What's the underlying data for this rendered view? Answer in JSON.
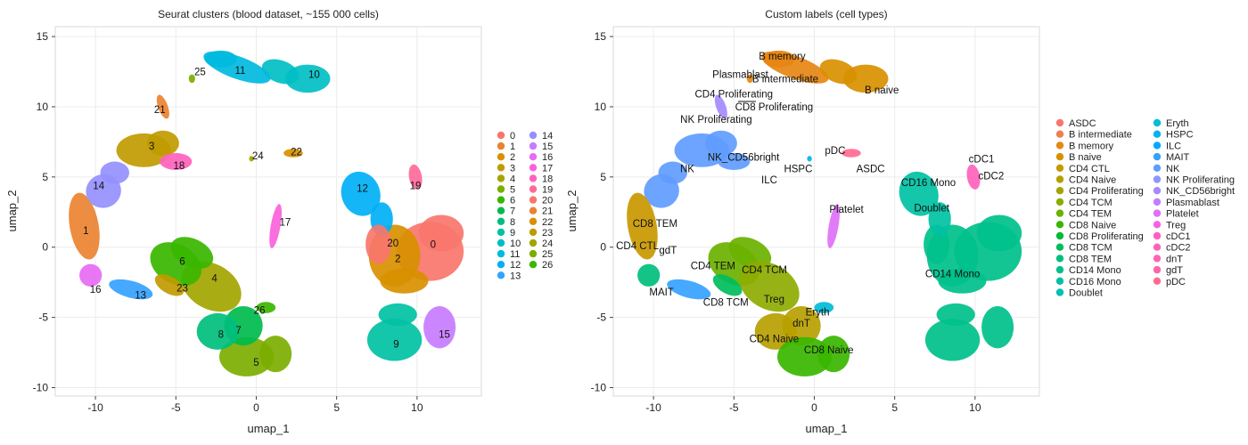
{
  "colors": {
    "ASDC": "#F8766D",
    "B intermediate": "#F27D52",
    "B memory": "#E68613",
    "B naive": "#D89000",
    "CD4 CTL": "#C99800",
    "CD4 Naive": "#B79F00",
    "CD4 Proliferating": "#A3A500",
    "CD4 TCM": "#8EAB00",
    "CD4 TEM": "#6BB100",
    "CD8 Naive": "#39B600",
    "CD8 Proliferating": "#00BA38",
    "CD8 TCM": "#00BD5C",
    "CD8 TEM": "#00BF7D",
    "CD14 Mono": "#00C08B",
    "CD16 Mono": "#00C1A3",
    "Doublet": "#00BFB5",
    "Eryth": "#00BCD8",
    "HSPC": "#00B4EF",
    "ILC": "#00A9FF",
    "MAIT": "#35A2FF",
    "NK": "#619CFF",
    "NK Proliferating": "#8C96FF",
    "NK_CD56bright": "#A58AFF",
    "Plasmablast": "#C77CFF",
    "Platelet": "#DF70F8",
    "Treg": "#F564E3",
    "cDC1": "#FF61C3",
    "cDC2": "#FF62BC",
    "dnT": "#FF63B6",
    "gdT": "#FF65A8",
    "pDC": "#FF6C91"
  },
  "chart_data": [
    {
      "type": "scatter",
      "title": "Seurat clusters (blood dataset, ~155 000 cells)",
      "xlabel": "umap_1",
      "ylabel": "umap_2",
      "xlim": [
        -12.5,
        14
      ],
      "ylim": [
        -10.6,
        15.7
      ],
      "xticks": [
        -10,
        -5,
        0,
        5,
        10
      ],
      "yticks": [
        -10,
        -5,
        0,
        5,
        10,
        15
      ],
      "legend_title": "",
      "legend_position": "right",
      "legend_columns": 2,
      "series": [
        {
          "name": "0",
          "color": "#F8766D",
          "x": 11.0,
          "y": 0.2
        },
        {
          "name": "1",
          "color": "#EA8331",
          "x": -10.6,
          "y": 1.2
        },
        {
          "name": "2",
          "color": "#D89000",
          "x": 8.8,
          "y": -0.8
        },
        {
          "name": "3",
          "color": "#C09B00",
          "x": -6.5,
          "y": 7.2
        },
        {
          "name": "4",
          "color": "#A3A500",
          "x": -2.6,
          "y": -2.2
        },
        {
          "name": "5",
          "color": "#7CAE00",
          "x": 0.0,
          "y": -8.2
        },
        {
          "name": "6",
          "color": "#39B600",
          "x": -4.6,
          "y": -1.0
        },
        {
          "name": "7",
          "color": "#00BB4E",
          "x": -1.1,
          "y": -5.9
        },
        {
          "name": "8",
          "color": "#00BF7D",
          "x": -2.2,
          "y": -6.2
        },
        {
          "name": "9",
          "color": "#00C1A3",
          "x": 8.7,
          "y": -6.9
        },
        {
          "name": "10",
          "color": "#00BFC4",
          "x": 3.6,
          "y": 12.3
        },
        {
          "name": "11",
          "color": "#00BAE0",
          "x": -1.0,
          "y": 12.6
        },
        {
          "name": "12",
          "color": "#00B0F6",
          "x": 6.6,
          "y": 4.2
        },
        {
          "name": "13",
          "color": "#35A2FF",
          "x": -7.2,
          "y": -3.4
        },
        {
          "name": "14",
          "color": "#9590FF",
          "x": -9.8,
          "y": 4.4
        },
        {
          "name": "15",
          "color": "#C77CFF",
          "x": 11.7,
          "y": -6.2
        },
        {
          "name": "16",
          "color": "#E76BF3",
          "x": -10.0,
          "y": -3.0
        },
        {
          "name": "17",
          "color": "#FA62DB",
          "x": 1.8,
          "y": 1.8
        },
        {
          "name": "18",
          "color": "#FF62BC",
          "x": -4.8,
          "y": 5.8
        },
        {
          "name": "19",
          "color": "#FF6A98",
          "x": 9.9,
          "y": 4.4
        },
        {
          "name": "20",
          "color": "#F8766D",
          "x": 8.5,
          "y": 0.3
        },
        {
          "name": "21",
          "color": "#EA8331",
          "x": -6.0,
          "y": 9.8
        },
        {
          "name": "22",
          "color": "#D89000",
          "x": 2.5,
          "y": 6.8
        },
        {
          "name": "23",
          "color": "#C09B00",
          "x": -4.6,
          "y": -2.9
        },
        {
          "name": "24",
          "color": "#A3A500",
          "x": 0.1,
          "y": 6.5
        },
        {
          "name": "25",
          "color": "#7CAE00",
          "x": -3.5,
          "y": 12.5
        },
        {
          "name": "26",
          "color": "#39B600",
          "x": 0.2,
          "y": -4.5
        }
      ]
    },
    {
      "type": "scatter",
      "title": "Custom labels (cell types)",
      "xlabel": "umap_1",
      "ylabel": "umap_2",
      "xlim": [
        -12.5,
        14
      ],
      "ylim": [
        -10.6,
        15.7
      ],
      "xticks": [
        -10,
        -5,
        0,
        5,
        10
      ],
      "yticks": [
        -10,
        -5,
        0,
        5,
        10,
        15
      ],
      "legend_title": "",
      "legend_position": "right",
      "legend_columns": 2,
      "categories": [
        "ASDC",
        "B intermediate",
        "B memory",
        "B naive",
        "CD4 CTL",
        "CD4 Naive",
        "CD4 Proliferating",
        "CD4 TCM",
        "CD4 TEM",
        "CD8 Naive",
        "CD8 Proliferating",
        "CD8 TCM",
        "CD8 TEM",
        "CD14 Mono",
        "CD16 Mono",
        "Doublet",
        "Eryth",
        "HSPC",
        "ILC",
        "MAIT",
        "NK",
        "NK Proliferating",
        "NK_CD56bright",
        "Plasmablast",
        "Platelet",
        "Treg",
        "cDC1",
        "cDC2",
        "dnT",
        "gdT",
        "pDC"
      ],
      "labels": [
        {
          "text": "B memory",
          "x": -2.0,
          "y": 13.6
        },
        {
          "text": "Plasmablast",
          "x": -4.6,
          "y": 12.3
        },
        {
          "text": "B intermediate",
          "x": -1.8,
          "y": 12.0
        },
        {
          "text": "B naive",
          "x": 4.2,
          "y": 11.2
        },
        {
          "text": "CD4 Proliferating",
          "x": -5.0,
          "y": 10.9
        },
        {
          "text": "CD8 Proliferating",
          "x": -2.5,
          "y": 10.0
        },
        {
          "text": "NK Proliferating",
          "x": -6.1,
          "y": 9.1
        },
        {
          "text": "NK_CD56bright",
          "x": -4.4,
          "y": 6.4
        },
        {
          "text": "NK",
          "x": -7.9,
          "y": 5.6
        },
        {
          "text": "pDC",
          "x": 1.3,
          "y": 6.9
        },
        {
          "text": "ASDC",
          "x": 3.5,
          "y": 5.6
        },
        {
          "text": "HSPC",
          "x": -1.0,
          "y": 5.6
        },
        {
          "text": "ILC",
          "x": -2.8,
          "y": 4.8
        },
        {
          "text": "CD16 Mono",
          "x": 7.1,
          "y": 4.6
        },
        {
          "text": "cDC1",
          "x": 10.4,
          "y": 6.3
        },
        {
          "text": "cDC2",
          "x": 11.0,
          "y": 5.1
        },
        {
          "text": "Doublet",
          "x": 7.3,
          "y": 2.8
        },
        {
          "text": "Platelet",
          "x": 2.0,
          "y": 2.7
        },
        {
          "text": "CD8 TEM",
          "x": -9.9,
          "y": 1.7
        },
        {
          "text": "CD4 CTL",
          "x": -11.0,
          "y": 0.1
        },
        {
          "text": "gdT",
          "x": -9.1,
          "y": -0.2
        },
        {
          "text": "CD4 TEM",
          "x": -6.3,
          "y": -1.3
        },
        {
          "text": "CD4 TCM",
          "x": -3.1,
          "y": -1.6
        },
        {
          "text": "MAIT",
          "x": -9.5,
          "y": -3.2
        },
        {
          "text": "CD8 TCM",
          "x": -5.5,
          "y": -3.9
        },
        {
          "text": "Treg",
          "x": -2.5,
          "y": -3.7
        },
        {
          "text": "Eryth",
          "x": 0.2,
          "y": -4.6
        },
        {
          "text": "dnT",
          "x": -0.8,
          "y": -5.4
        },
        {
          "text": "CD4 Naive",
          "x": -2.5,
          "y": -6.5
        },
        {
          "text": "CD8 Naive",
          "x": 0.9,
          "y": -7.3
        },
        {
          "text": "CD14 Mono",
          "x": 8.6,
          "y": -1.9
        }
      ]
    }
  ]
}
